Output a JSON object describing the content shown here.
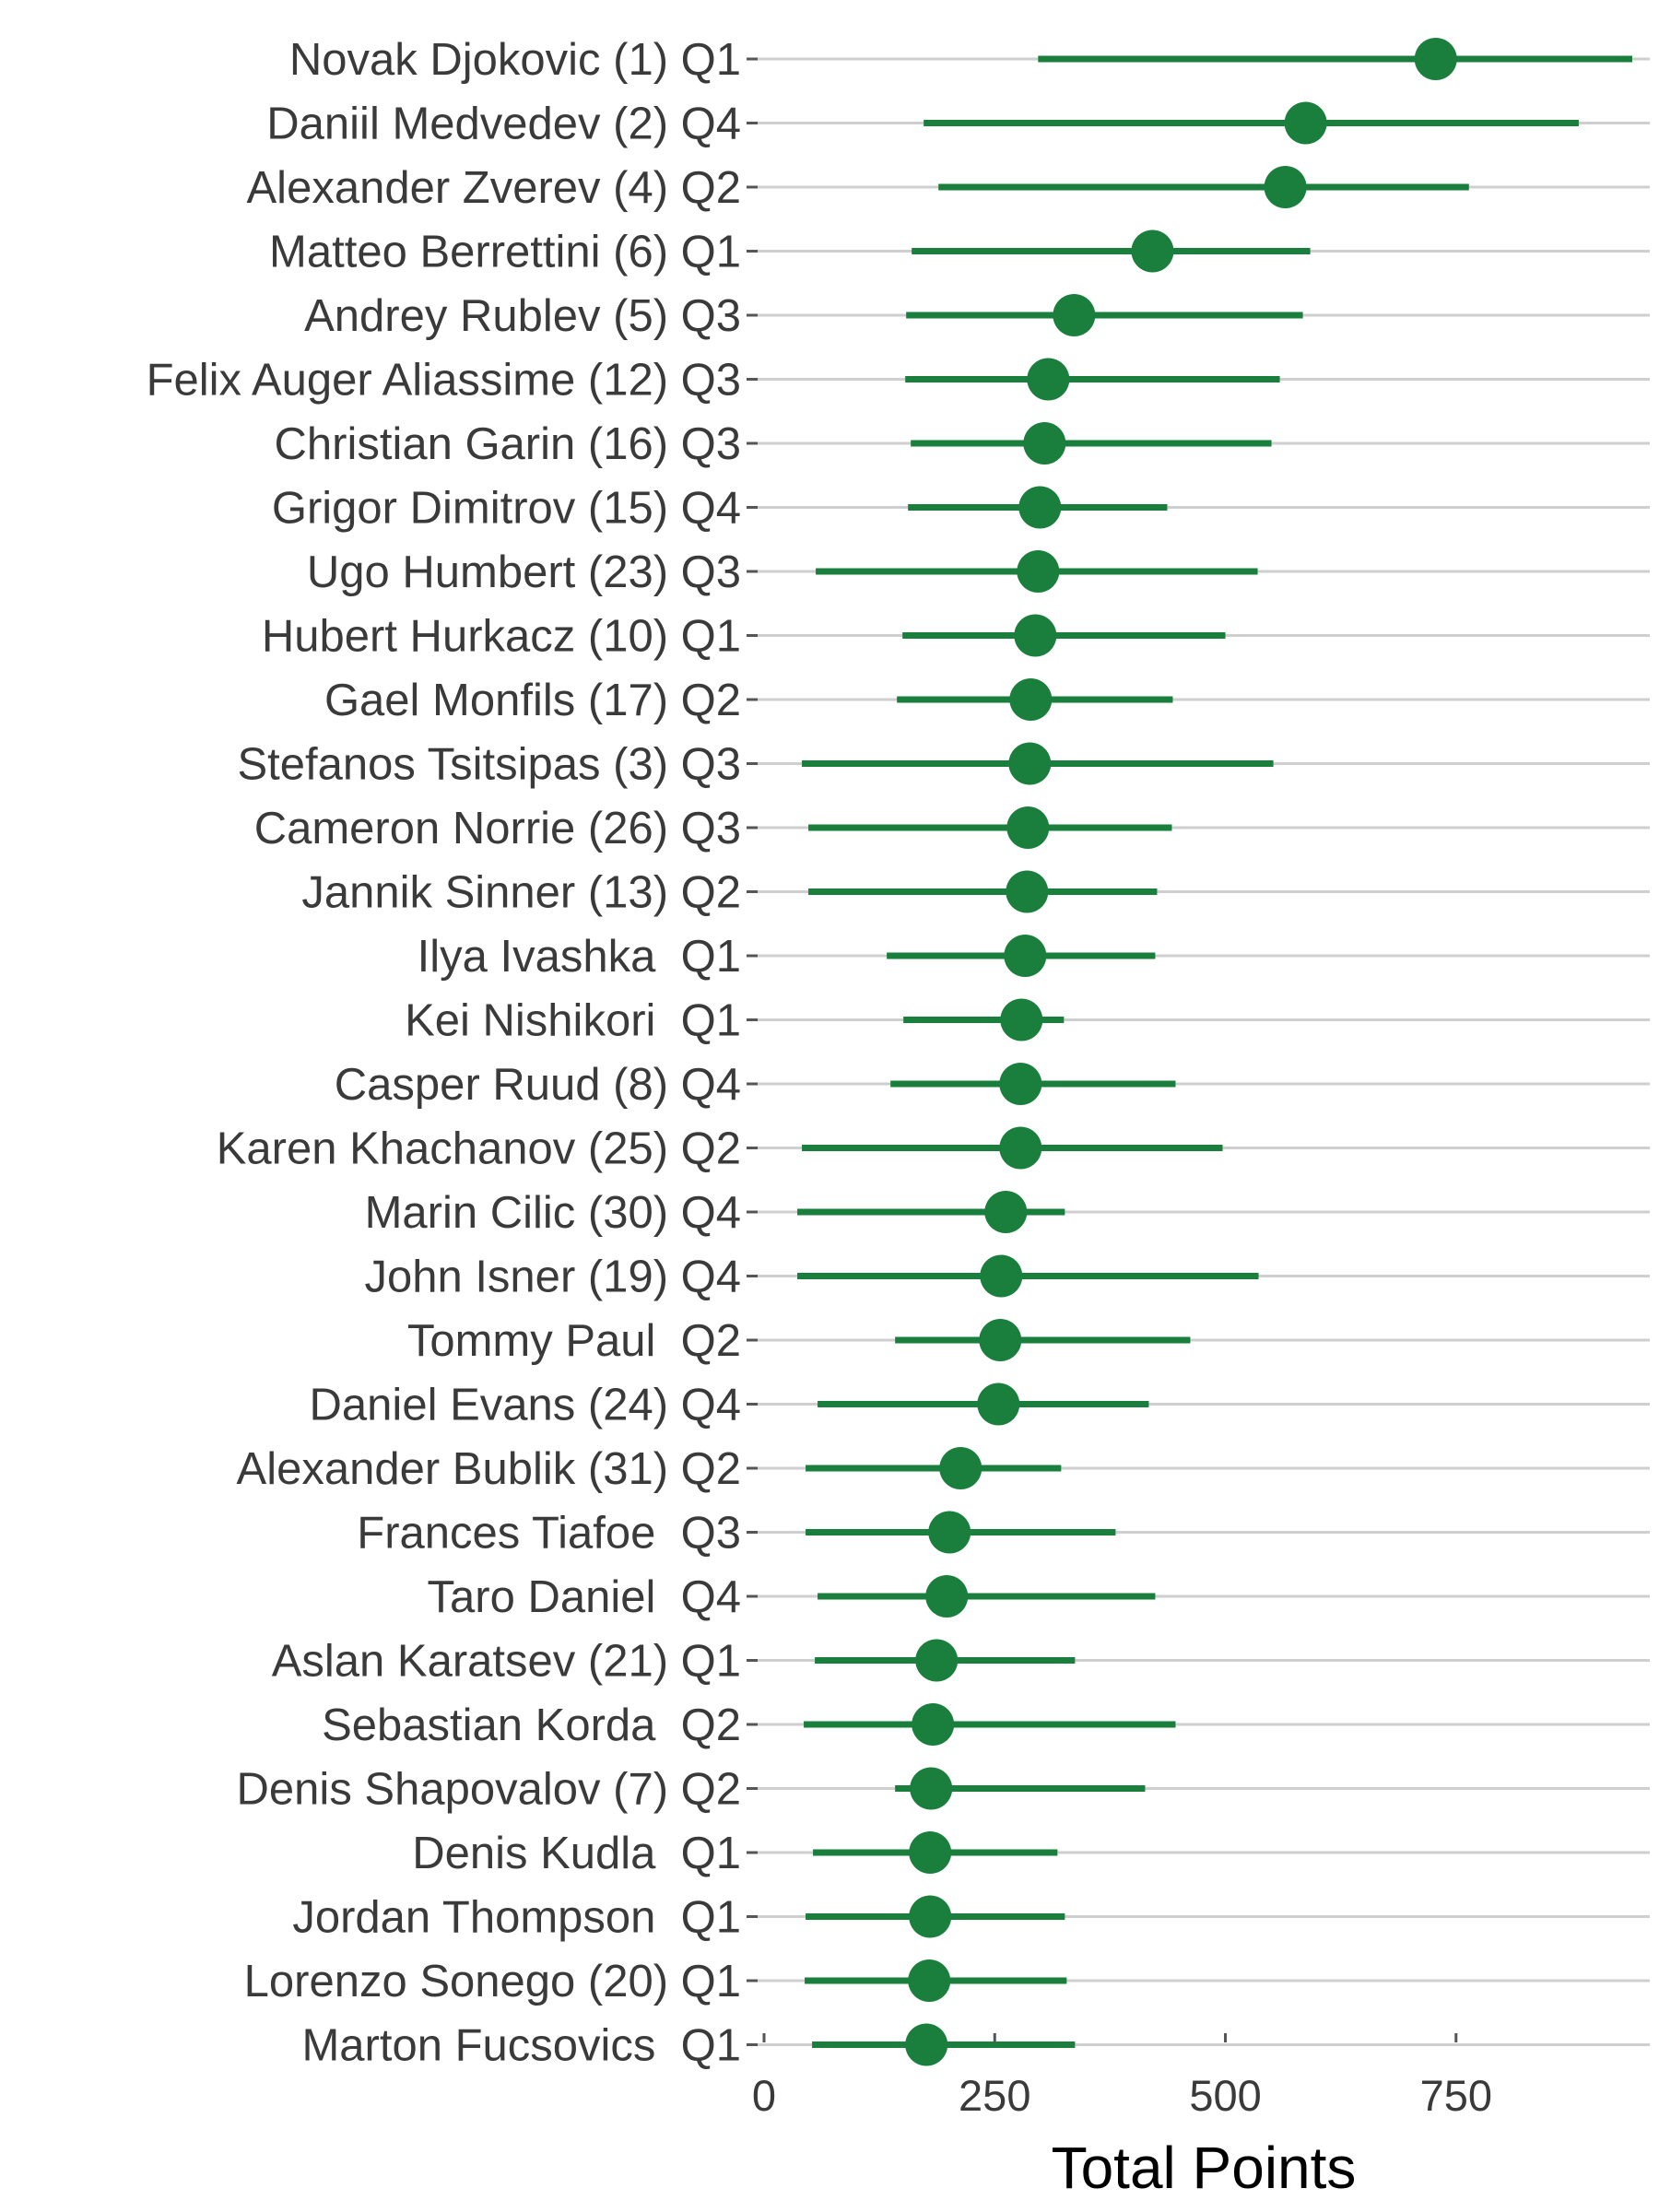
{
  "colors": {
    "series": "#1a7f3c",
    "grid": "#cfcfcf",
    "tick": "#555555",
    "text": "#3a3a3a"
  },
  "chart_data": {
    "type": "dot-interval",
    "title": "",
    "xlabel": "Total Points",
    "ylabel": "",
    "xlim": [
      -7,
      960
    ],
    "xticks": [
      0,
      250,
      500,
      750
    ],
    "xtick_labels": [
      "0",
      "250",
      "500",
      "750"
    ],
    "grid": "horizontal",
    "legend": "none",
    "rows": [
      {
        "label": "Novak Djokovic (1) Q1",
        "value": 728,
        "low": 297,
        "high": 941
      },
      {
        "label": "Daniil Medvedev (2) Q4",
        "value": 587,
        "low": 173,
        "high": 883
      },
      {
        "label": "Alexander Zverev (4) Q2",
        "value": 565,
        "low": 189,
        "high": 764
      },
      {
        "label": "Matteo Berrettini (6) Q1",
        "value": 421,
        "low": 160,
        "high": 592
      },
      {
        "label": "Andrey Rublev (5) Q3",
        "value": 336,
        "low": 154,
        "high": 584
      },
      {
        "label": "Felix Auger Aliassime (12) Q3",
        "value": 308,
        "low": 153,
        "high": 559
      },
      {
        "label": "Christian Garin (16) Q3",
        "value": 304,
        "low": 159,
        "high": 550
      },
      {
        "label": "Grigor Dimitrov (15) Q4",
        "value": 299,
        "low": 156,
        "high": 437
      },
      {
        "label": "Ugo Humbert (23) Q3",
        "value": 297,
        "low": 56,
        "high": 535
      },
      {
        "label": "Hubert Hurkacz (10) Q1",
        "value": 294,
        "low": 150,
        "high": 500
      },
      {
        "label": "Gael Monfils (17) Q2",
        "value": 289,
        "low": 144,
        "high": 443
      },
      {
        "label": "Stefanos Tsitsipas (3) Q3",
        "value": 288,
        "low": 41,
        "high": 552
      },
      {
        "label": "Cameron Norrie (26) Q3",
        "value": 286,
        "low": 48,
        "high": 442
      },
      {
        "label": "Jannik Sinner (13) Q2",
        "value": 285,
        "low": 48,
        "high": 426
      },
      {
        "label": "Ilya Ivashka  Q1",
        "value": 283,
        "low": 133,
        "high": 424
      },
      {
        "label": "Kei Nishikori  Q1",
        "value": 279,
        "low": 151,
        "high": 325
      },
      {
        "label": "Casper Ruud (8) Q4",
        "value": 278,
        "low": 137,
        "high": 446
      },
      {
        "label": "Karen Khachanov (25) Q2",
        "value": 278,
        "low": 41,
        "high": 497
      },
      {
        "label": "Marin Cilic (30) Q4",
        "value": 262,
        "low": 36,
        "high": 326
      },
      {
        "label": "John Isner (19) Q4",
        "value": 257,
        "low": 36,
        "high": 536
      },
      {
        "label": "Tommy Paul  Q2",
        "value": 256,
        "low": 142,
        "high": 462
      },
      {
        "label": "Daniel Evans (24) Q4",
        "value": 254,
        "low": 58,
        "high": 417
      },
      {
        "label": "Alexander Bublik (31) Q2",
        "value": 213,
        "low": 45,
        "high": 322
      },
      {
        "label": "Frances Tiafoe  Q3",
        "value": 201,
        "low": 45,
        "high": 381
      },
      {
        "label": "Taro Daniel  Q4",
        "value": 198,
        "low": 58,
        "high": 424
      },
      {
        "label": "Aslan Karatsev (21) Q1",
        "value": 187,
        "low": 55,
        "high": 337
      },
      {
        "label": "Sebastian Korda  Q2",
        "value": 183,
        "low": 43,
        "high": 446
      },
      {
        "label": "Denis Shapovalov (7) Q2",
        "value": 181,
        "low": 142,
        "high": 413
      },
      {
        "label": "Denis Kudla  Q1",
        "value": 180,
        "low": 53,
        "high": 318
      },
      {
        "label": "Jordan Thompson  Q1",
        "value": 180,
        "low": 45,
        "high": 326
      },
      {
        "label": "Lorenzo Sonego (20) Q1",
        "value": 179,
        "low": 44,
        "high": 328
      },
      {
        "label": "Marton Fucsovics  Q1",
        "value": 176,
        "low": 52,
        "high": 337
      }
    ]
  }
}
